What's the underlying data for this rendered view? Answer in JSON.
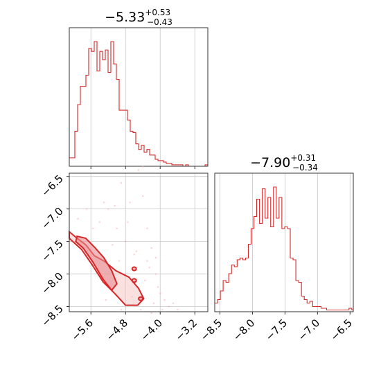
{
  "chart_data": {
    "type": "corner",
    "color": "#d62728",
    "parameters": [
      {
        "median": "−5.33",
        "upper": "+0.53",
        "lower": "−0.43",
        "range": [
          -6.1,
          -2.9
        ],
        "ticks": [
          -5.6,
          -4.8,
          -4.0,
          -3.2
        ],
        "tick_labels": [
          "−5.6",
          "−4.8",
          "−4.0",
          "−3.2"
        ],
        "grid_lines": [
          -5.6,
          -4.8,
          -4.0,
          -3.2
        ]
      },
      {
        "median": "−7.90",
        "upper": "+0.31",
        "lower": "−0.34",
        "range": [
          -8.58,
          -6.45
        ],
        "ticks": [
          -8.5,
          -8.0,
          -7.5,
          -7.0,
          -6.5
        ],
        "tick_labels": [
          "−8.5",
          "−8.0",
          "−7.5",
          "−7.0",
          "−6.5"
        ],
        "grid_lines": [
          -8.5,
          -8.0,
          -7.5,
          -7.0,
          -6.5
        ]
      }
    ],
    "histogram_1": {
      "start": -6.1,
      "bin_width": 0.064,
      "counts": [
        6,
        6,
        25,
        44,
        57,
        57,
        65,
        84,
        82,
        89,
        68,
        82,
        76,
        83,
        67,
        89,
        73,
        62,
        40,
        40,
        40,
        33,
        25,
        24,
        16,
        12,
        15,
        10,
        12,
        8,
        8,
        5,
        4,
        4,
        3,
        2,
        2,
        1,
        1,
        1,
        1,
        0,
        1,
        0,
        0,
        0,
        0,
        0,
        0,
        1
      ]
    },
    "histogram_2": {
      "start": -8.58,
      "bin_width": 0.043,
      "counts": [
        5,
        7,
        12,
        18,
        17,
        22,
        27,
        26,
        30,
        31,
        30,
        31,
        39,
        48,
        55,
        65,
        51,
        71,
        54,
        66,
        49,
        72,
        54,
        66,
        48,
        49,
        48,
        31,
        30,
        18,
        17,
        9,
        7,
        5,
        6,
        3,
        3,
        3,
        2,
        2,
        1,
        1,
        1,
        1,
        1,
        1,
        1,
        1,
        2,
        1
      ]
    },
    "contour_outer": [
      [
        -6.1,
        -7.35
      ],
      [
        -5.92,
        -7.45
      ],
      [
        -5.72,
        -7.55
      ],
      [
        -5.52,
        -7.72
      ],
      [
        -5.3,
        -7.8
      ],
      [
        -5.02,
        -7.95
      ],
      [
        -4.72,
        -8.05
      ],
      [
        -4.5,
        -8.22
      ],
      [
        -4.38,
        -8.38
      ],
      [
        -4.52,
        -8.48
      ],
      [
        -4.8,
        -8.48
      ],
      [
        -5.05,
        -8.3
      ],
      [
        -5.32,
        -8.12
      ],
      [
        -5.58,
        -7.85
      ],
      [
        -5.82,
        -7.62
      ],
      [
        -6.02,
        -7.5
      ],
      [
        -6.1,
        -7.45
      ]
    ],
    "contour_inner": [
      [
        -5.92,
        -7.42
      ],
      [
        -5.72,
        -7.45
      ],
      [
        -5.5,
        -7.6
      ],
      [
        -5.3,
        -7.75
      ],
      [
        -5.12,
        -7.95
      ],
      [
        -5.0,
        -8.15
      ],
      [
        -5.12,
        -8.25
      ],
      [
        -5.32,
        -8.08
      ],
      [
        -5.55,
        -7.82
      ],
      [
        -5.78,
        -7.6
      ],
      [
        -5.95,
        -7.5
      ]
    ],
    "contour_blobs": [
      [
        -4.6,
        -7.92
      ],
      [
        -4.6,
        -8.1
      ],
      [
        -4.45,
        -8.38
      ]
    ],
    "samples": [
      [
        -4.9,
        -6.6
      ],
      [
        -4.5,
        -6.4
      ],
      [
        -4.4,
        -6.35
      ],
      [
        -4.7,
        -6.9
      ],
      [
        -4.3,
        -7.3
      ],
      [
        -4.2,
        -7.6
      ],
      [
        -4.25,
        -7.9
      ],
      [
        -4.1,
        -8.0
      ],
      [
        -4.0,
        -8.3
      ],
      [
        -3.9,
        -8.4
      ],
      [
        -3.8,
        -8.5
      ],
      [
        -4.6,
        -7.7
      ],
      [
        -4.8,
        -7.5
      ],
      [
        -5.0,
        -7.3
      ],
      [
        -5.2,
        -7.0
      ],
      [
        -5.4,
        -7.2
      ],
      [
        -5.7,
        -7.0
      ],
      [
        -5.9,
        -7.15
      ],
      [
        -5.3,
        -6.9
      ],
      [
        -4.95,
        -7.8
      ],
      [
        -4.55,
        -7.65
      ],
      [
        -4.35,
        -8.1
      ],
      [
        -4.15,
        -8.45
      ],
      [
        -4.45,
        -8.55
      ],
      [
        -4.05,
        -8.2
      ],
      [
        -3.95,
        -8.55
      ],
      [
        -4.65,
        -8.35
      ],
      [
        -5.1,
        -7.55
      ],
      [
        -5.55,
        -7.3
      ],
      [
        -4.8,
        -8.0
      ],
      [
        -4.3,
        -7.8
      ],
      [
        -4.1,
        -7.75
      ],
      [
        -5.05,
        -6.95
      ],
      [
        -4.75,
        -7.2
      ],
      [
        -4.4,
        -6.8
      ],
      [
        -3.7,
        -8.45
      ],
      [
        -3.6,
        -8.55
      ],
      [
        -4.2,
        -8.6
      ],
      [
        -4.9,
        -8.55
      ],
      [
        -5.25,
        -8.4
      ]
    ]
  }
}
